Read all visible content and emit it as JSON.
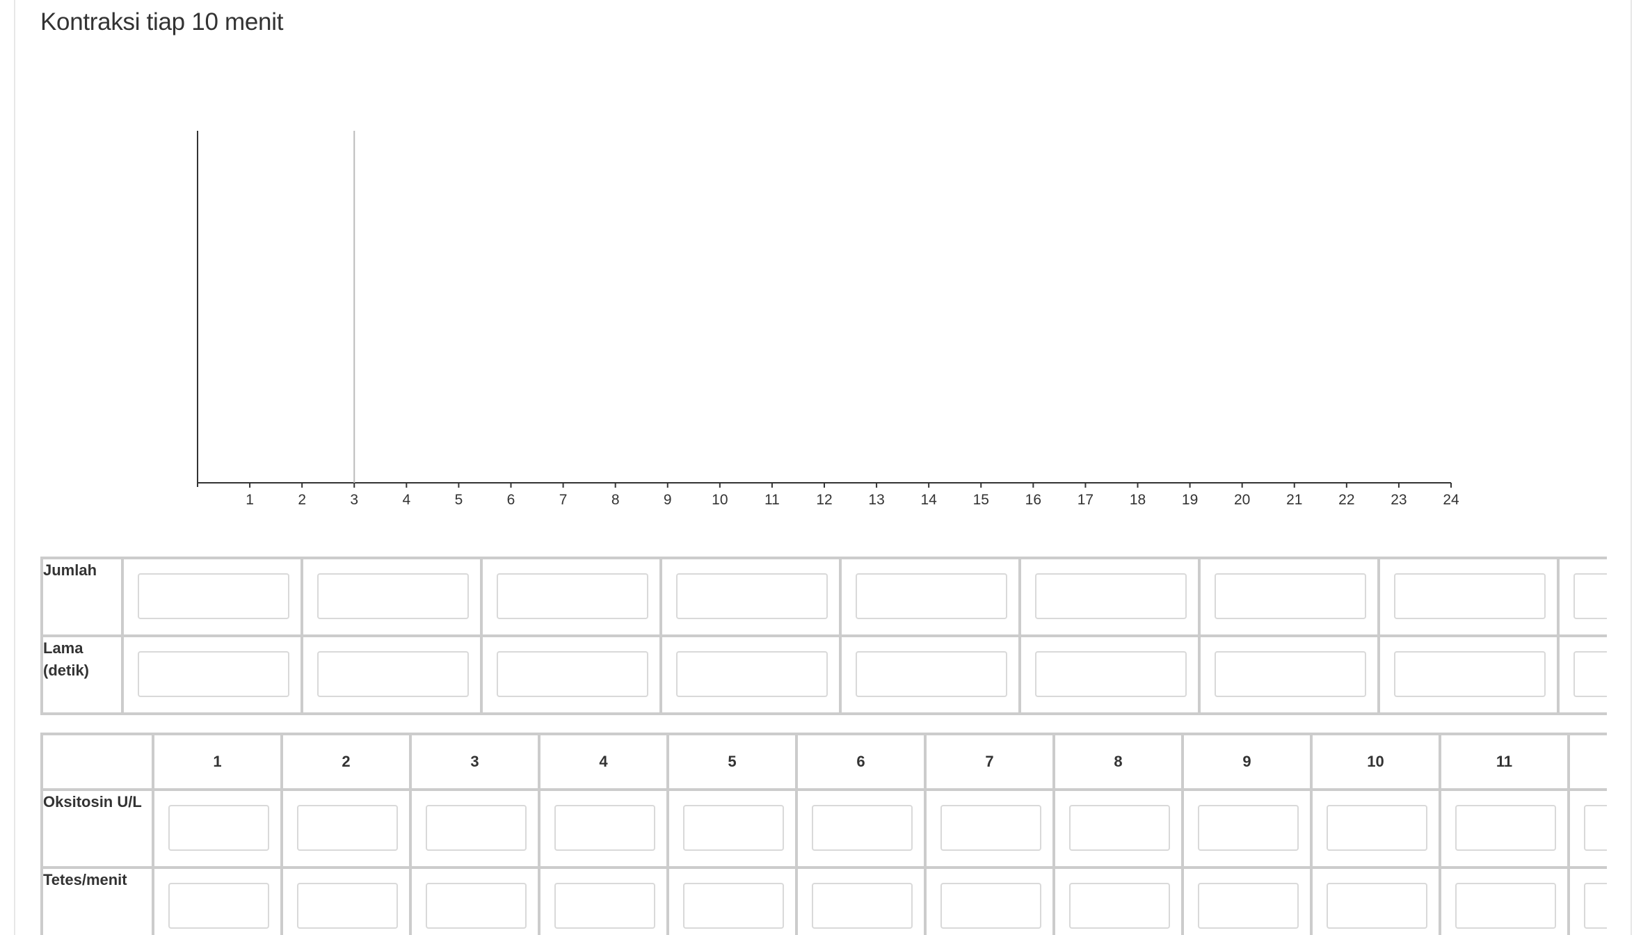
{
  "title": "Kontraksi tiap 10 menit",
  "chart_data": {
    "type": "bar",
    "x_ticks": [
      "1",
      "2",
      "3",
      "4",
      "5",
      "6",
      "7",
      "8",
      "9",
      "10",
      "11",
      "12",
      "13",
      "14",
      "15",
      "16",
      "17",
      "18",
      "19",
      "20",
      "21",
      "22",
      "23",
      "24"
    ],
    "xlim": [
      0,
      24
    ],
    "marker_lines": [
      3
    ],
    "series": []
  },
  "table1": {
    "rows": [
      {
        "label": "Jumlah",
        "values": [
          "",
          "",
          "",
          "",
          "",
          "",
          "",
          "",
          ""
        ]
      },
      {
        "label": "Lama (detik)",
        "values": [
          "",
          "",
          "",
          "",
          "",
          "",
          "",
          "",
          ""
        ]
      }
    ]
  },
  "table2": {
    "headers": [
      "1",
      "2",
      "3",
      "4",
      "5",
      "6",
      "7",
      "8",
      "9",
      "10",
      "11",
      ""
    ],
    "rows": [
      {
        "label": "Oksitosin U/L",
        "values": [
          "",
          "",
          "",
          "",
          "",
          "",
          "",
          "",
          "",
          "",
          "",
          ""
        ]
      },
      {
        "label": "Tetes/menit",
        "values": [
          "",
          "",
          "",
          "",
          "",
          "",
          "",
          "",
          "",
          "",
          "",
          ""
        ]
      }
    ]
  },
  "colors": {
    "border": "#cccccc",
    "axis": "#333333",
    "marker": "#bbbbbb"
  }
}
